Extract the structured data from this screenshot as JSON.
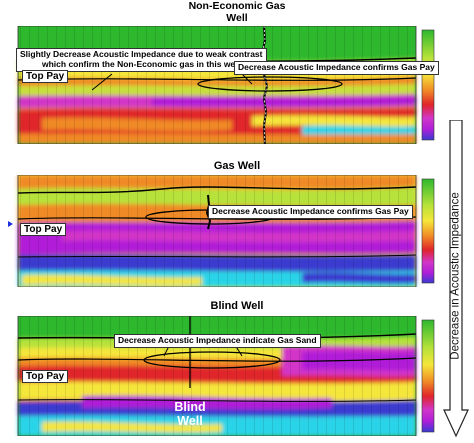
{
  "panels": [
    {
      "title_line1": "Non-Economic Gas",
      "title_line2": "Well",
      "callout_left_line1": "Slightly Decrease Acoustic Impedance due to weak contrast",
      "callout_left_line2": "which confirm the Non-Economic gas in this well",
      "callout_right": "Decrease Acoustic Impedance confirms Gas Pay",
      "top_pay": "Top Pay"
    },
    {
      "title": "Gas Well",
      "callout": "Decrease Acoustic Impedance confirms Gas Pay",
      "top_pay": "Top Pay"
    },
    {
      "title": "Blind Well",
      "callout": "Decrease Acoustic Impedance indicate Gas Sand",
      "top_pay": "Top Pay",
      "blind_label_line1": "Blind",
      "blind_label_line2": "Well"
    }
  ],
  "side_axis_label": "Decrease in Acoustic Impedance",
  "colors": {
    "high_impedance": "#2eb82e",
    "mid_impedance": "#f5e63a",
    "low_impedance": "#e0252a",
    "lowest_impedance": "#b01fd8",
    "water": "#2bd4e8",
    "deep": "#3a3ad0"
  }
}
